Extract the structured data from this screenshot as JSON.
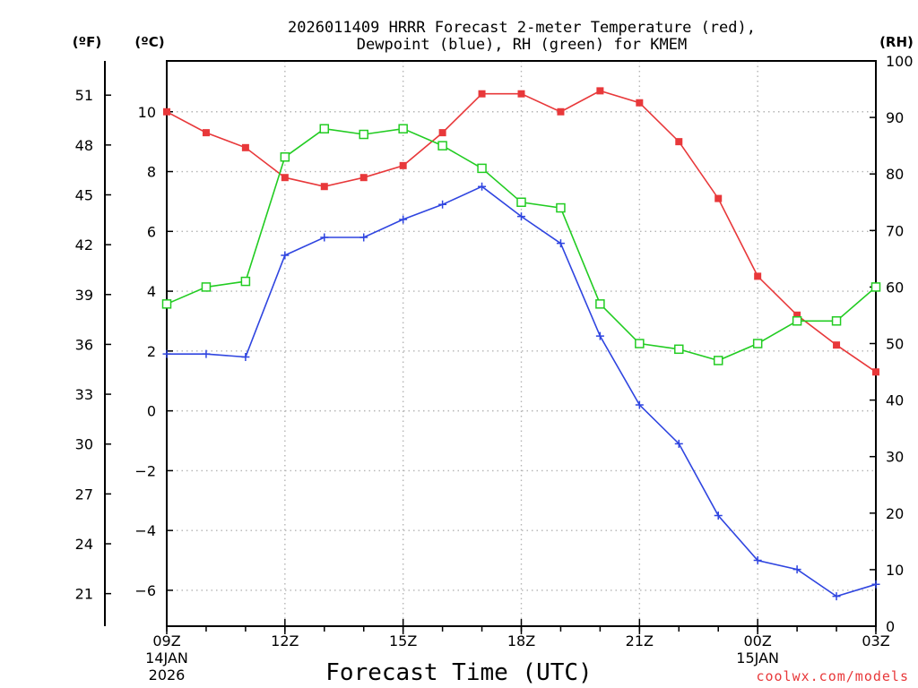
{
  "chart_data": {
    "type": "line",
    "title": "2026011409 HRRR Forecast 2-meter Temperature (red),",
    "subtitle": "Dewpoint (blue), RH (green) for KMEM",
    "xlabel": "Forecast Time (UTC)",
    "unit_labels": {
      "fahrenheit": "(ºF)",
      "celsius": "(ºC)",
      "rh": "(RH)"
    },
    "x_hours": [
      0,
      1,
      2,
      3,
      4,
      5,
      6,
      7,
      8,
      9,
      10,
      11,
      12,
      13,
      14,
      15,
      16,
      17,
      18
    ],
    "xlim": [
      0,
      18
    ],
    "x_ticks": [
      {
        "hour": 0,
        "label": "09Z",
        "sub1": "14JAN",
        "sub2": "2026"
      },
      {
        "hour": 3,
        "label": "12Z",
        "sub1": "",
        "sub2": ""
      },
      {
        "hour": 6,
        "label": "15Z",
        "sub1": "",
        "sub2": ""
      },
      {
        "hour": 9,
        "label": "18Z",
        "sub1": "",
        "sub2": ""
      },
      {
        "hour": 12,
        "label": "21Z",
        "sub1": "",
        "sub2": ""
      },
      {
        "hour": 15,
        "label": "00Z",
        "sub1": "15JAN",
        "sub2": ""
      },
      {
        "hour": 18,
        "label": "03Z",
        "sub1": "",
        "sub2": ""
      }
    ],
    "ylim_c": [
      -7.2,
      11.7
    ],
    "yticks_c": [
      -6,
      -4,
      -2,
      0,
      2,
      4,
      6,
      8,
      10
    ],
    "yticks_f": [
      21,
      24,
      27,
      30,
      33,
      36,
      39,
      42,
      45,
      48,
      51
    ],
    "ylim_rh": [
      0,
      100
    ],
    "yticks_rh": [
      0,
      10,
      20,
      30,
      40,
      50,
      60,
      70,
      80,
      90,
      100
    ],
    "series": [
      {
        "name": "Temperature",
        "axis": "celsius",
        "color": "#e8383a",
        "marker": "filled-square",
        "values": [
          10.0,
          9.3,
          8.8,
          7.8,
          7.5,
          7.8,
          8.2,
          9.3,
          10.6,
          10.6,
          10.0,
          10.7,
          10.3,
          9.0,
          7.1,
          4.5,
          3.2,
          2.2,
          1.3
        ]
      },
      {
        "name": "Dewpoint",
        "axis": "celsius",
        "color": "#2f45e0",
        "marker": "plus",
        "values": [
          1.9,
          1.9,
          1.8,
          5.2,
          5.8,
          5.8,
          6.4,
          6.9,
          7.5,
          6.5,
          5.6,
          2.5,
          0.2,
          -1.1,
          -3.5,
          -5.0,
          -5.3,
          -6.2,
          -5.8
        ]
      },
      {
        "name": "RH",
        "axis": "rh",
        "color": "#22cc22",
        "marker": "open-square",
        "values": [
          57,
          60,
          61,
          83,
          88,
          87,
          88,
          85,
          81,
          75,
          74,
          57,
          50,
          49,
          47,
          50,
          54,
          54,
          60
        ]
      }
    ],
    "grid": true
  },
  "credit": "coolwx.com/models"
}
